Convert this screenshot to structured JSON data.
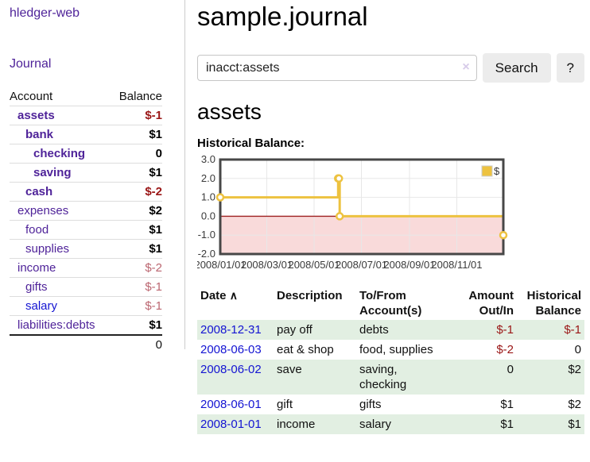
{
  "sidebar": {
    "brand": "hledger-web",
    "journal_link": "Journal",
    "headers": {
      "account": "Account",
      "balance": "Balance"
    },
    "accounts": [
      {
        "name": "assets",
        "balance": "$-1"
      },
      {
        "name": "bank",
        "balance": "$1"
      },
      {
        "name": "checking",
        "balance": "0"
      },
      {
        "name": "saving",
        "balance": "$1"
      },
      {
        "name": "cash",
        "balance": "$-2"
      },
      {
        "name": "expenses",
        "balance": "$2"
      },
      {
        "name": "food",
        "balance": "$1"
      },
      {
        "name": "supplies",
        "balance": "$1"
      },
      {
        "name": "income",
        "balance": "$-2"
      },
      {
        "name": "gifts",
        "balance": "$-1"
      },
      {
        "name": "salary",
        "balance": "$-1"
      },
      {
        "name": "liabilities:debts",
        "balance": "$1"
      }
    ],
    "total": "0"
  },
  "main": {
    "title": "sample.journal",
    "search": {
      "value": "inacct:assets",
      "clear_icon": "×",
      "button_label": "Search",
      "help_label": "?"
    },
    "account_heading": "assets",
    "chart_label": "Historical Balance:",
    "register": {
      "headers": {
        "date": "Date",
        "sort_icon": "∧",
        "description": "Description",
        "accounts": "To/From Account(s)",
        "amount": "Amount Out/In",
        "balance": "Historical Balance"
      },
      "rows": [
        {
          "date": "2008-12-31",
          "description": "pay off",
          "accounts": "debts",
          "amount": "$-1",
          "balance": "$-1"
        },
        {
          "date": "2008-06-03",
          "description": "eat & shop",
          "accounts": "food, supplies",
          "amount": "$-2",
          "balance": "0"
        },
        {
          "date": "2008-06-02",
          "description": "save",
          "accounts": "saving, checking",
          "amount": "0",
          "balance": "$2"
        },
        {
          "date": "2008-06-01",
          "description": "gift",
          "accounts": "gifts",
          "amount": "$1",
          "balance": "$2"
        },
        {
          "date": "2008-01-01",
          "description": "income",
          "accounts": "salary",
          "amount": "$1",
          "balance": "$1"
        }
      ]
    }
  },
  "chart_data": {
    "type": "line",
    "step": true,
    "title": "Historical Balance:",
    "x_range": [
      "2008-01-01",
      "2008-12-31"
    ],
    "ylim": [
      -2,
      3
    ],
    "yticks": [
      "3.0",
      "2.0",
      "1.0",
      "0.0",
      "-1.0",
      "-2.0"
    ],
    "xticks": [
      "2008/01/01",
      "2008/03/01",
      "2008/05/01",
      "2008/07/01",
      "2008/09/01",
      "2008/11/01"
    ],
    "series": [
      {
        "name": "$",
        "color": "#edc240",
        "points": [
          [
            "2008-01-01",
            1
          ],
          [
            "2008-06-01",
            2
          ],
          [
            "2008-06-02",
            2
          ],
          [
            "2008-06-03",
            0
          ],
          [
            "2008-12-31",
            -1
          ]
        ]
      }
    ],
    "legend_position": "top-right",
    "grid": true,
    "colors": {
      "grid": "#e7e7e7",
      "border": "#474747",
      "zero_line": "#9e2020",
      "negative_region": "#f9dada",
      "tick_text": "#3a3a3a"
    }
  }
}
